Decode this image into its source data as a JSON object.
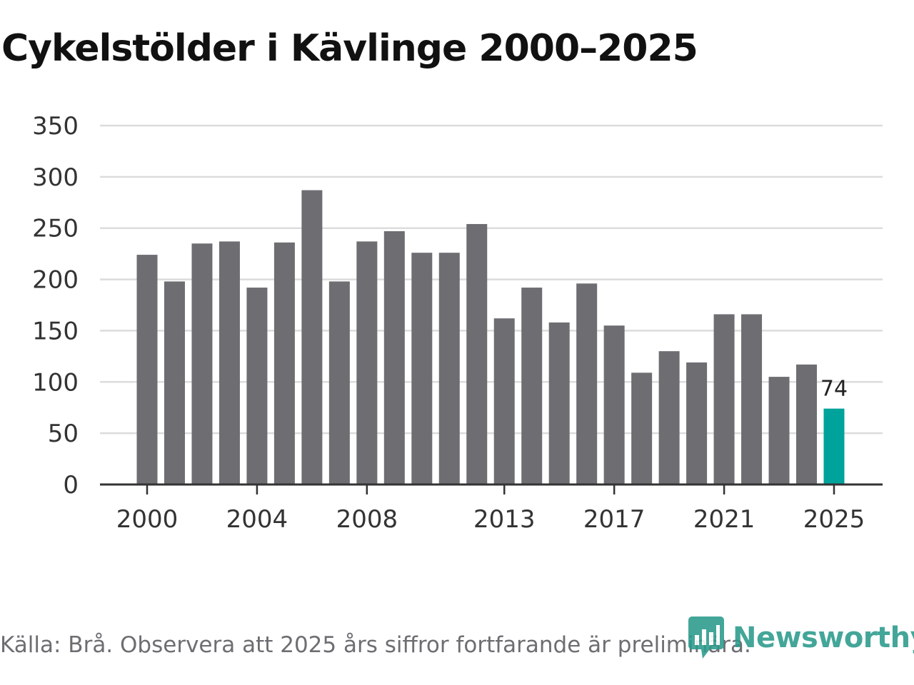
{
  "title": "Cykelstölder i Kävlinge 2000–2025",
  "source_note": "Källa: Brå. Observera att 2025 års siffror fortfarande är preliminära.",
  "brand": {
    "name": "Newsworthy",
    "icon": "bar-chart-logo-icon"
  },
  "colors": {
    "bar": "#6e6d72",
    "highlight": "#00a39b",
    "grid": "#dcdcdc",
    "axis": "#333333",
    "brand": "#2a9a8c"
  },
  "chart_data": {
    "type": "bar",
    "title": "Cykelstölder i Kävlinge 2000–2025",
    "xlabel": "",
    "ylabel": "",
    "categories": [
      "2000",
      "2001",
      "2002",
      "2003",
      "2004",
      "2005",
      "2006",
      "2007",
      "2008",
      "2009",
      "2010",
      "2011",
      "2012",
      "2013",
      "2014",
      "2015",
      "2016",
      "2017",
      "2018",
      "2019",
      "2020",
      "2021",
      "2022",
      "2023",
      "2024",
      "2025"
    ],
    "values": [
      224,
      198,
      235,
      237,
      192,
      236,
      287,
      198,
      237,
      247,
      226,
      226,
      254,
      162,
      192,
      158,
      196,
      155,
      109,
      130,
      119,
      166,
      166,
      105,
      117,
      74
    ],
    "highlight_index": 25,
    "data_labels": [
      {
        "category": "2025",
        "text": "74"
      }
    ],
    "ylim": [
      0,
      350
    ],
    "yticks": [
      0,
      50,
      100,
      150,
      200,
      250,
      300,
      350
    ],
    "xticks": [
      "2000",
      "2004",
      "2008",
      "2013",
      "2017",
      "2021",
      "2025"
    ],
    "grid": true
  }
}
